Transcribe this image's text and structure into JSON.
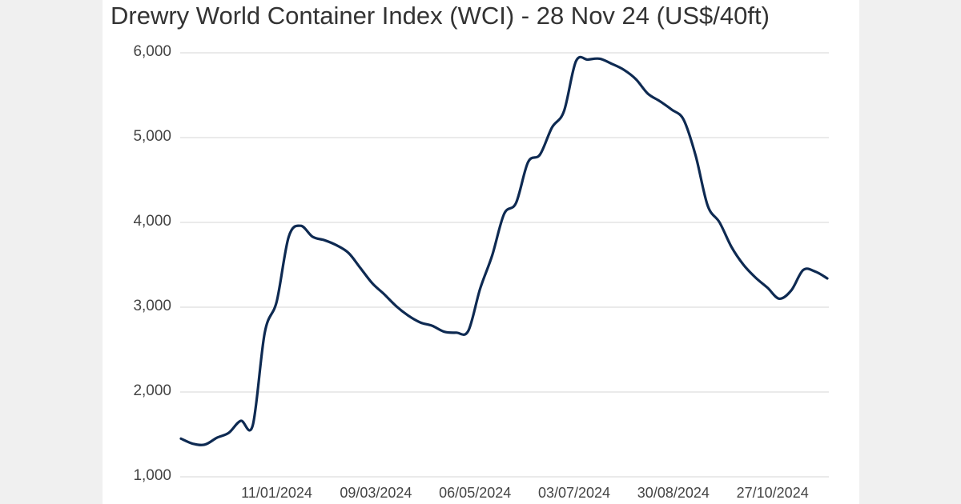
{
  "chart_data": {
    "type": "line",
    "title": "Drewry World Container Index (WCI) - 28 Nov 24 (US$/40ft)",
    "xlabel": "",
    "ylabel": "",
    "ylim": [
      1000,
      6000
    ],
    "yticks": [
      1000,
      2000,
      3000,
      4000,
      5000,
      6000
    ],
    "ytick_labels": [
      "1,000",
      "2,000",
      "3,000",
      "4,000",
      "5,000",
      "6,000"
    ],
    "xtick_labels": [
      "11/01/2024",
      "09/03/2024",
      "06/05/2024",
      "03/07/2024",
      "30/08/2024",
      "27/10/2024"
    ],
    "grid": "horizontal",
    "legend": "none",
    "line_color": "#0e2a52",
    "series": [
      {
        "name": "WCI (US$/40ft)",
        "x": [
          "16/11/2023",
          "23/11/2023",
          "30/11/2023",
          "07/12/2023",
          "14/12/2023",
          "21/12/2023",
          "28/12/2023",
          "04/01/2024",
          "11/01/2024",
          "18/01/2024",
          "25/01/2024",
          "01/02/2024",
          "08/02/2024",
          "15/02/2024",
          "22/02/2024",
          "29/02/2024",
          "07/03/2024",
          "14/03/2024",
          "21/03/2024",
          "28/03/2024",
          "04/04/2024",
          "11/04/2024",
          "18/04/2024",
          "25/04/2024",
          "02/05/2024",
          "09/05/2024",
          "16/05/2024",
          "23/05/2024",
          "30/05/2024",
          "06/06/2024",
          "13/06/2024",
          "20/06/2024",
          "27/06/2024",
          "04/07/2024",
          "11/07/2024",
          "18/07/2024",
          "25/07/2024",
          "01/08/2024",
          "08/08/2024",
          "15/08/2024",
          "22/08/2024",
          "29/08/2024",
          "05/09/2024",
          "12/09/2024",
          "19/09/2024",
          "26/09/2024",
          "03/10/2024",
          "10/10/2024",
          "17/10/2024",
          "24/10/2024",
          "31/10/2024",
          "07/11/2024",
          "14/11/2024",
          "21/11/2024",
          "28/11/2024"
        ],
        "values": [
          1450,
          1390,
          1380,
          1460,
          1520,
          1660,
          1610,
          2700,
          3070,
          3830,
          3960,
          3830,
          3790,
          3730,
          3640,
          3460,
          3280,
          3150,
          3010,
          2900,
          2820,
          2780,
          2710,
          2700,
          2720,
          3220,
          3610,
          4100,
          4230,
          4710,
          4800,
          5120,
          5310,
          5900,
          5920,
          5930,
          5870,
          5800,
          5690,
          5520,
          5430,
          5330,
          5210,
          4790,
          4200,
          4000,
          3710,
          3500,
          3350,
          3230,
          3100,
          3200,
          3440,
          3420,
          3340
        ]
      }
    ]
  },
  "header": {
    "title": "Drewry World Container Index (WCI) - 28 Nov 24 (US$/40ft)"
  }
}
